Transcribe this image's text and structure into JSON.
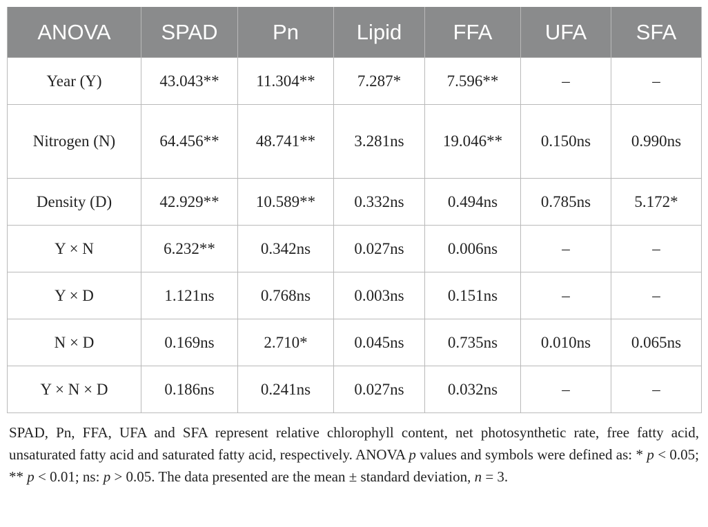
{
  "table": {
    "headers": [
      "ANOVA",
      "SPAD",
      "Pn",
      "Lipid",
      "FFA",
      "UFA",
      "SFA"
    ],
    "rows": [
      {
        "label": "Year (Y)",
        "cells": [
          "43.043**",
          "11.304**",
          "7.287*",
          "7.596**",
          "–",
          "–"
        ]
      },
      {
        "label": "Nitrogen (N)",
        "cells": [
          "64.456**",
          "48.741**",
          "3.281ns",
          "19.046**",
          "0.150ns",
          "0.990ns"
        ]
      },
      {
        "label": "Density (D)",
        "cells": [
          "42.929**",
          "10.589**",
          "0.332ns",
          "0.494ns",
          "0.785ns",
          "5.172*"
        ]
      },
      {
        "label": "Y × N",
        "cells": [
          "6.232**",
          "0.342ns",
          "0.027ns",
          "0.006ns",
          "–",
          "–"
        ]
      },
      {
        "label": "Y × D",
        "cells": [
          "1.121ns",
          "0.768ns",
          "0.003ns",
          "0.151ns",
          "–",
          "–"
        ]
      },
      {
        "label": "N × D",
        "cells": [
          "0.169ns",
          "2.710*",
          "0.045ns",
          "0.735ns",
          "0.010ns",
          "0.065ns"
        ]
      },
      {
        "label": "Y × N × D",
        "cells": [
          "0.186ns",
          "0.241ns",
          "0.027ns",
          "0.032ns",
          "–",
          "–"
        ]
      }
    ]
  },
  "note": {
    "part1": "SPAD, Pn, FFA, UFA and SFA represent relative chlorophyll content, net photosynthetic rate, free fatty acid, unsaturated fatty acid and saturated fatty acid, respectively. ANOVA ",
    "p_symbol": "p",
    "part2": " values and symbols were defined as: * ",
    "part3": " < 0.05; ** ",
    "part4": " < 0.01; ns: ",
    "part5": " > 0.05. The data presented are the mean ± standard deviation, ",
    "n_symbol": "n",
    "part6": " = 3."
  },
  "colors": {
    "header_bg": "#8a8b8c",
    "header_text": "#ffffff",
    "border": "#b9b9b9"
  }
}
